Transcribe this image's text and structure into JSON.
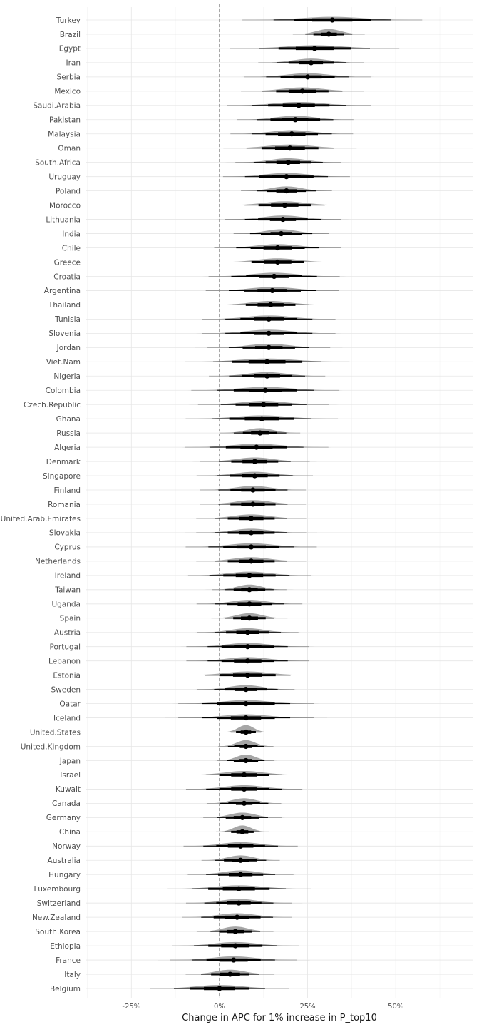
{
  "chart_data": {
    "type": "scatter",
    "style": "halfeye-interval",
    "xlabel": "Change in APC for 1% increase in P_top10",
    "ylabel": "",
    "xlim": [
      -0.38,
      0.72
    ],
    "x_ticks": [
      -0.25,
      0,
      0.25,
      0.5
    ],
    "x_tick_labels": [
      "-25%",
      "0%",
      "25%",
      "50%"
    ],
    "reference_line": {
      "x": 0,
      "style": "dashed"
    },
    "grid": true,
    "legend": "none",
    "colors": {
      "density": "#a6a6a6",
      "interval": "#000000",
      "point": "#000000",
      "reference": "#666666"
    },
    "countries": [
      {
        "name": "Turkey",
        "median": 0.32,
        "sd": 0.085
      },
      {
        "name": "Brazil",
        "median": 0.31,
        "sd": 0.034
      },
      {
        "name": "Egypt",
        "median": 0.27,
        "sd": 0.08
      },
      {
        "name": "Iran",
        "median": 0.26,
        "sd": 0.05
      },
      {
        "name": "Serbia",
        "median": 0.25,
        "sd": 0.06
      },
      {
        "name": "Mexico",
        "median": 0.235,
        "sd": 0.058
      },
      {
        "name": "Saudi.Arabia",
        "median": 0.225,
        "sd": 0.068
      },
      {
        "name": "Pakistan",
        "median": 0.215,
        "sd": 0.055
      },
      {
        "name": "Malaysia",
        "median": 0.205,
        "sd": 0.058
      },
      {
        "name": "Oman",
        "median": 0.2,
        "sd": 0.063
      },
      {
        "name": "South.Africa",
        "median": 0.195,
        "sd": 0.05
      },
      {
        "name": "Uruguay",
        "median": 0.19,
        "sd": 0.06
      },
      {
        "name": "Poland",
        "median": 0.19,
        "sd": 0.043
      },
      {
        "name": "Morocco",
        "median": 0.185,
        "sd": 0.058
      },
      {
        "name": "Lithuania",
        "median": 0.18,
        "sd": 0.055
      },
      {
        "name": "India",
        "median": 0.175,
        "sd": 0.045
      },
      {
        "name": "Chile",
        "median": 0.165,
        "sd": 0.06
      },
      {
        "name": "Greece",
        "median": 0.165,
        "sd": 0.058
      },
      {
        "name": "Croatia",
        "median": 0.155,
        "sd": 0.062
      },
      {
        "name": "Argentina",
        "median": 0.15,
        "sd": 0.063
      },
      {
        "name": "Thailand",
        "median": 0.145,
        "sd": 0.055
      },
      {
        "name": "Tunisia",
        "median": 0.14,
        "sd": 0.063
      },
      {
        "name": "Slovenia",
        "median": 0.14,
        "sd": 0.063
      },
      {
        "name": "Jordan",
        "median": 0.14,
        "sd": 0.058
      },
      {
        "name": "Viet.Nam",
        "median": 0.135,
        "sd": 0.078
      },
      {
        "name": "Nigeria",
        "median": 0.135,
        "sd": 0.055
      },
      {
        "name": "Colombia",
        "median": 0.13,
        "sd": 0.07
      },
      {
        "name": "Czech.Republic",
        "median": 0.125,
        "sd": 0.062
      },
      {
        "name": "Ghana",
        "median": 0.12,
        "sd": 0.072
      },
      {
        "name": "Russia",
        "median": 0.115,
        "sd": 0.038
      },
      {
        "name": "Algeria",
        "median": 0.105,
        "sd": 0.068
      },
      {
        "name": "Denmark",
        "median": 0.1,
        "sd": 0.052
      },
      {
        "name": "Singapore",
        "median": 0.1,
        "sd": 0.055
      },
      {
        "name": "Finland",
        "median": 0.095,
        "sd": 0.05
      },
      {
        "name": "Romania",
        "median": 0.095,
        "sd": 0.05
      },
      {
        "name": "United.Arab.Emirates",
        "median": 0.09,
        "sd": 0.052
      },
      {
        "name": "Slovakia",
        "median": 0.09,
        "sd": 0.052
      },
      {
        "name": "Cyprus",
        "median": 0.09,
        "sd": 0.062
      },
      {
        "name": "Netherlands",
        "median": 0.09,
        "sd": 0.052
      },
      {
        "name": "Ireland",
        "median": 0.085,
        "sd": 0.058
      },
      {
        "name": "Taiwan",
        "median": 0.085,
        "sd": 0.035
      },
      {
        "name": "Uganda",
        "median": 0.085,
        "sd": 0.05
      },
      {
        "name": "Spain",
        "median": 0.085,
        "sd": 0.036
      },
      {
        "name": "Austria",
        "median": 0.08,
        "sd": 0.048
      },
      {
        "name": "Portugal",
        "median": 0.08,
        "sd": 0.058
      },
      {
        "name": "Lebanon",
        "median": 0.08,
        "sd": 0.058
      },
      {
        "name": "Estonia",
        "median": 0.08,
        "sd": 0.062
      },
      {
        "name": "Sweden",
        "median": 0.075,
        "sd": 0.046
      },
      {
        "name": "Qatar",
        "median": 0.075,
        "sd": 0.064
      },
      {
        "name": "Iceland",
        "median": 0.075,
        "sd": 0.064
      },
      {
        "name": "United.States",
        "median": 0.075,
        "sd": 0.022
      },
      {
        "name": "United.Kingdom",
        "median": 0.075,
        "sd": 0.026
      },
      {
        "name": "Japan",
        "median": 0.075,
        "sd": 0.027
      },
      {
        "name": "Israel",
        "median": 0.07,
        "sd": 0.055
      },
      {
        "name": "Kuwait",
        "median": 0.07,
        "sd": 0.055
      },
      {
        "name": "Canada",
        "median": 0.07,
        "sd": 0.035
      },
      {
        "name": "Germany",
        "median": 0.065,
        "sd": 0.037
      },
      {
        "name": "China",
        "median": 0.065,
        "sd": 0.025
      },
      {
        "name": "Norway",
        "median": 0.06,
        "sd": 0.054
      },
      {
        "name": "Australia",
        "median": 0.06,
        "sd": 0.037
      },
      {
        "name": "Hungary",
        "median": 0.06,
        "sd": 0.05
      },
      {
        "name": "Luxembourg",
        "median": 0.055,
        "sd": 0.068
      },
      {
        "name": "Switzerland",
        "median": 0.055,
        "sd": 0.05
      },
      {
        "name": "New.Zealand",
        "median": 0.05,
        "sd": 0.052
      },
      {
        "name": "South.Korea",
        "median": 0.045,
        "sd": 0.036
      },
      {
        "name": "Ethiopia",
        "median": 0.045,
        "sd": 0.06
      },
      {
        "name": "France",
        "median": 0.04,
        "sd": 0.06
      },
      {
        "name": "Italy",
        "median": 0.03,
        "sd": 0.042
      },
      {
        "name": "Belgium",
        "median": 0.0,
        "sd": 0.066
      }
    ]
  }
}
